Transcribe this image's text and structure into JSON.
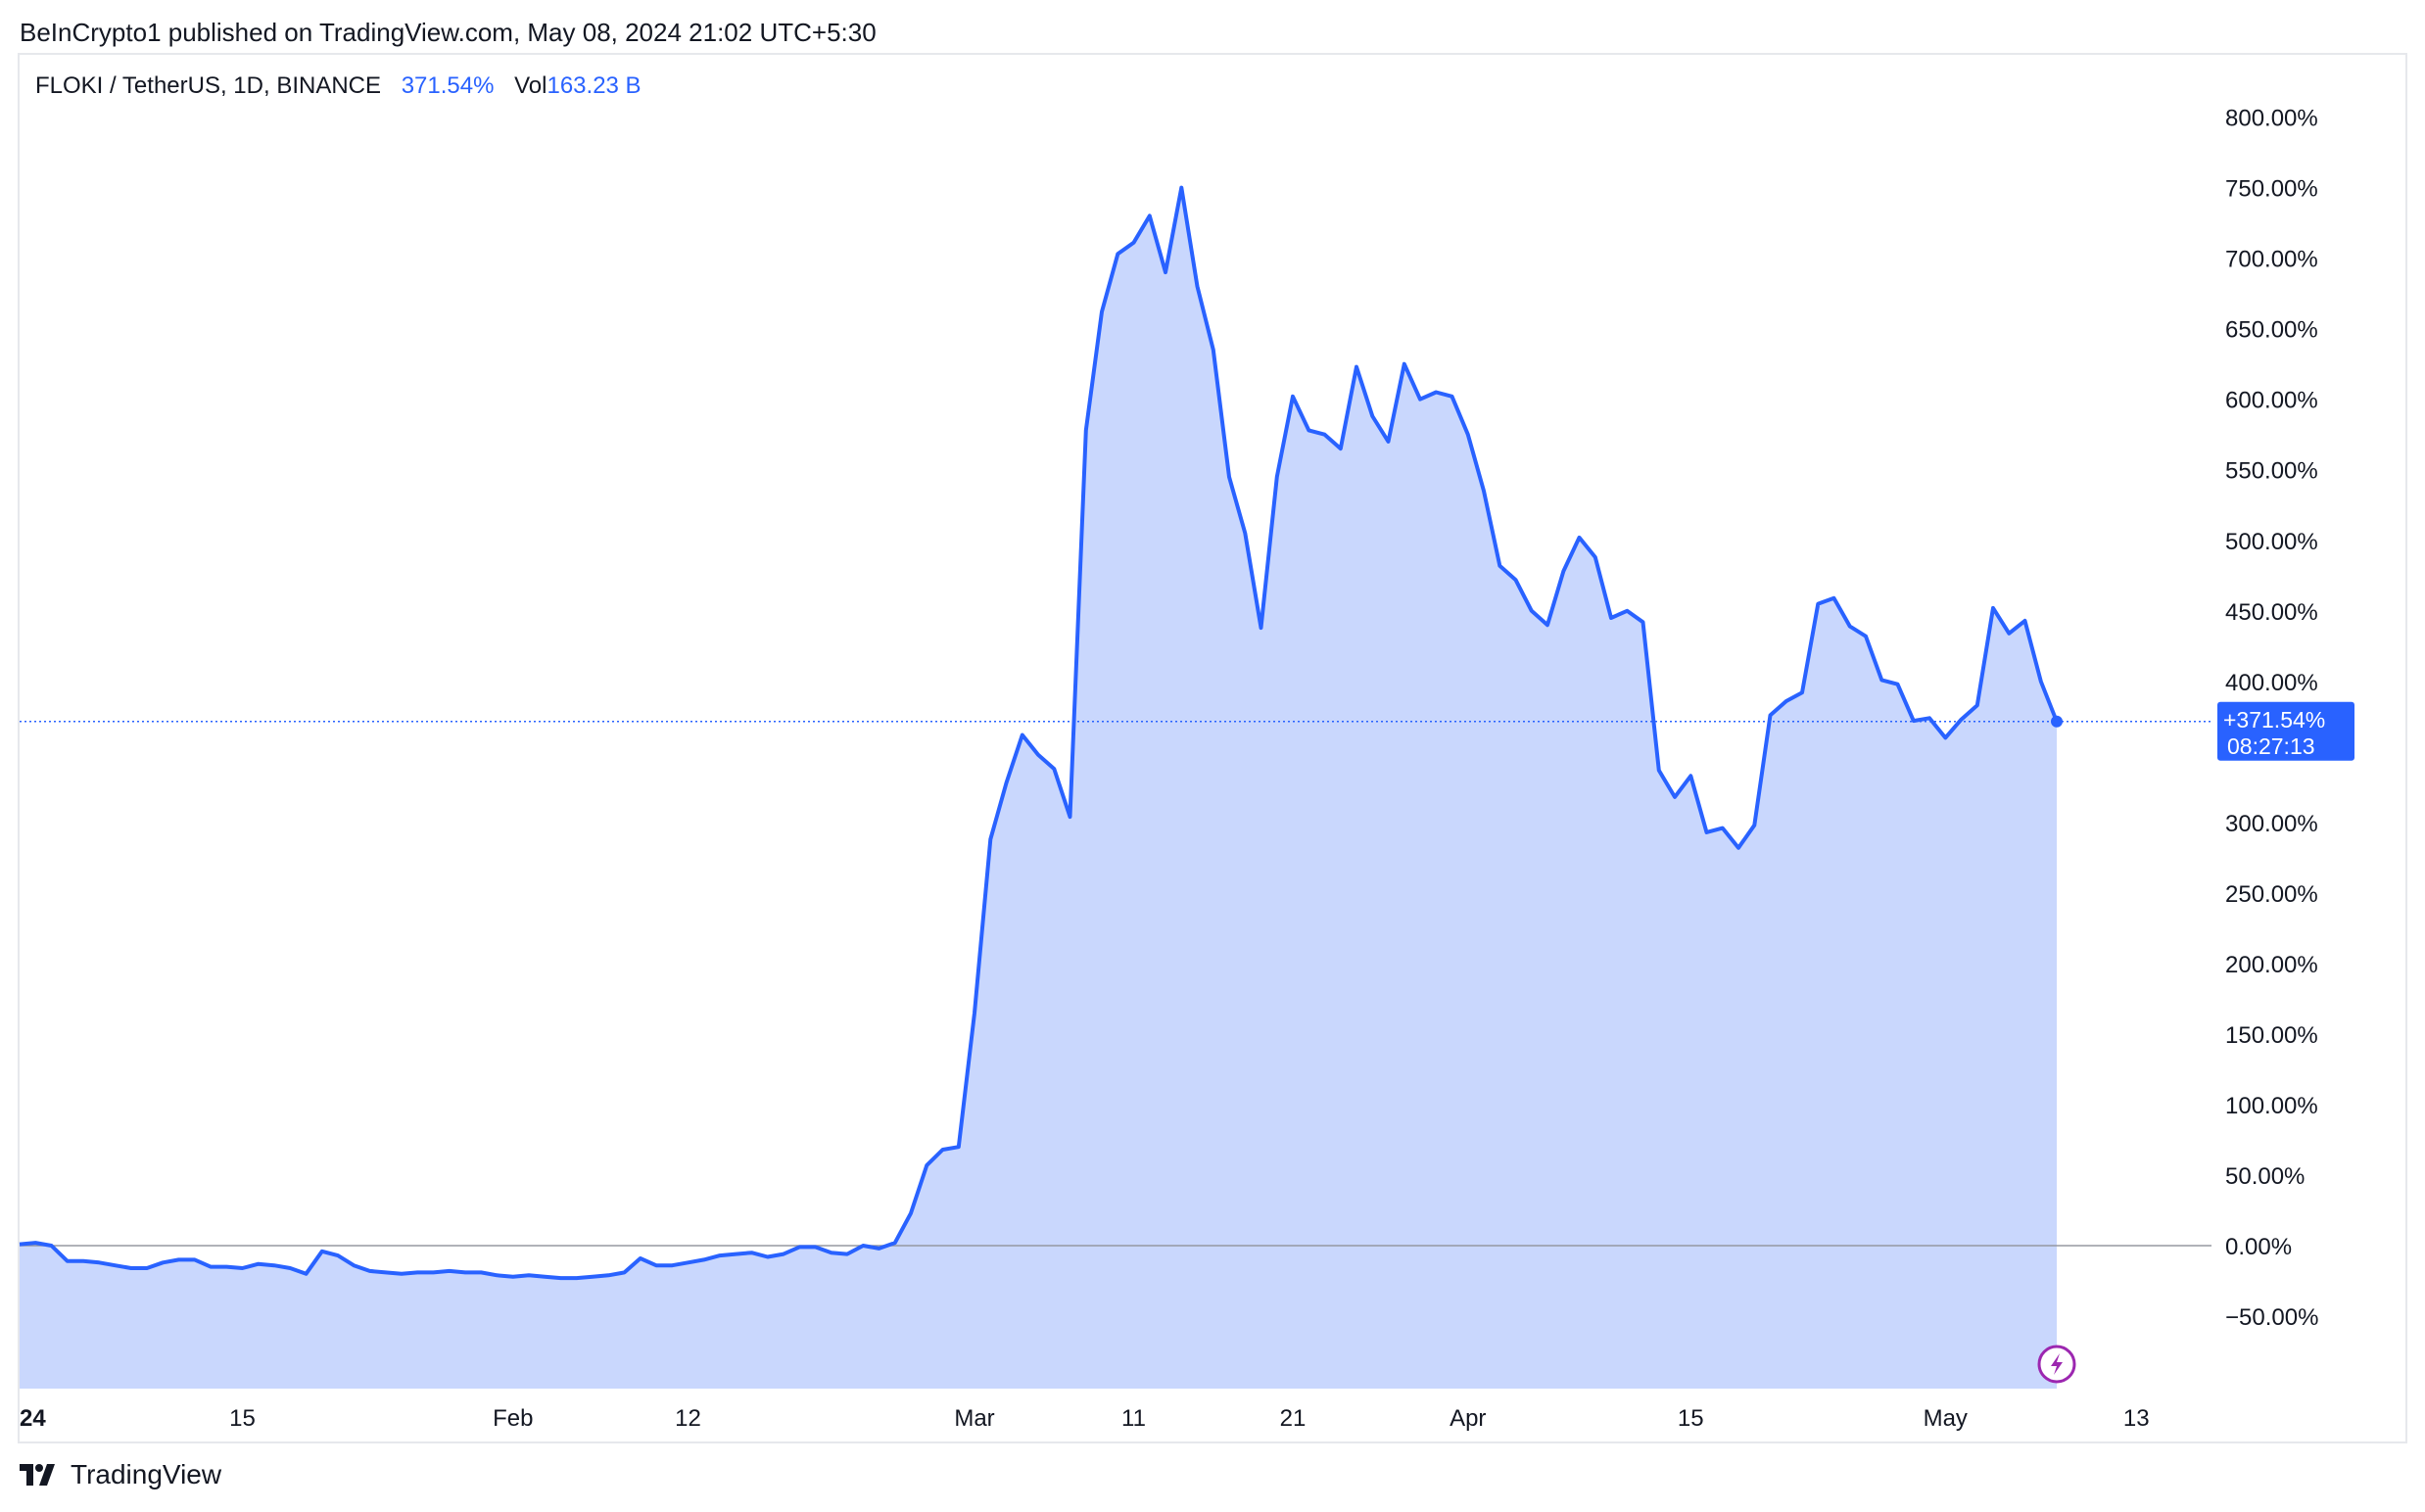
{
  "header": {
    "published_text": "BeInCrypto1 published on TradingView.com, May 08, 2024 21:02 UTC+5:30"
  },
  "legend": {
    "symbol": "FLOKI / TetherUS, 1D, BINANCE",
    "change": "371.54%",
    "volume_label": "Vol",
    "volume_value": "163.23 B"
  },
  "price_label": {
    "value": "+371.54%",
    "countdown": "08:27:13"
  },
  "footer": {
    "brand": "TradingView"
  },
  "colors": {
    "line": "#2962ff",
    "fill": "#c9d7fd",
    "zero_line": "#9598a1",
    "label_bg": "#2962ff"
  },
  "icons": {
    "lightning": "lightning-icon",
    "logo": "tradingview-logo-icon"
  },
  "chart_data": {
    "type": "area",
    "x_tick_labels": [
      {
        "day": 0,
        "label": "24"
      },
      {
        "day": 14,
        "label": "15"
      },
      {
        "day": 31,
        "label": "Feb"
      },
      {
        "day": 42,
        "label": "12"
      },
      {
        "day": 60,
        "label": "Mar"
      },
      {
        "day": 70,
        "label": "11"
      },
      {
        "day": 80,
        "label": "21"
      },
      {
        "day": 91,
        "label": "Apr"
      },
      {
        "day": 105,
        "label": "15"
      },
      {
        "day": 121,
        "label": "May"
      },
      {
        "day": 133,
        "label": "13"
      }
    ],
    "y_tick_labels": [
      "800.00%",
      "750.00%",
      "700.00%",
      "650.00%",
      "600.00%",
      "550.00%",
      "500.00%",
      "450.00%",
      "400.00%",
      "300.00%",
      "250.00%",
      "200.00%",
      "150.00%",
      "100.00%",
      "50.00%",
      "0.00%",
      "−50.00%"
    ],
    "y_tick_values": [
      800,
      750,
      700,
      650,
      600,
      550,
      500,
      450,
      400,
      300,
      250,
      200,
      150,
      100,
      50,
      0,
      -50
    ],
    "ylim": [
      -100,
      800
    ],
    "xlim": [
      0,
      138
    ],
    "last_value": 371.54,
    "series": [
      {
        "values": [
          [
            0,
            1
          ],
          [
            1,
            2
          ],
          [
            2,
            0
          ],
          [
            3,
            -11
          ],
          [
            4,
            -11
          ],
          [
            5,
            -12
          ],
          [
            6,
            -14
          ],
          [
            7,
            -16
          ],
          [
            8,
            -16
          ],
          [
            9,
            -12
          ],
          [
            10,
            -10
          ],
          [
            11,
            -10
          ],
          [
            12,
            -15
          ],
          [
            13,
            -15
          ],
          [
            14,
            -16
          ],
          [
            15,
            -13
          ],
          [
            16,
            -14
          ],
          [
            17,
            -16
          ],
          [
            18,
            -20
          ],
          [
            19,
            -4
          ],
          [
            20,
            -7
          ],
          [
            21,
            -14
          ],
          [
            22,
            -18
          ],
          [
            23,
            -19
          ],
          [
            24,
            -20
          ],
          [
            25,
            -19
          ],
          [
            26,
            -19
          ],
          [
            27,
            -18
          ],
          [
            28,
            -19
          ],
          [
            29,
            -19
          ],
          [
            30,
            -21
          ],
          [
            31,
            -22
          ],
          [
            32,
            -21
          ],
          [
            33,
            -22
          ],
          [
            34,
            -23
          ],
          [
            35,
            -23
          ],
          [
            36,
            -22
          ],
          [
            37,
            -21
          ],
          [
            38,
            -19
          ],
          [
            39,
            -9
          ],
          [
            40,
            -14
          ],
          [
            41,
            -14
          ],
          [
            42,
            -12
          ],
          [
            43,
            -10
          ],
          [
            44,
            -7
          ],
          [
            45,
            -6
          ],
          [
            46,
            -5
          ],
          [
            47,
            -8
          ],
          [
            48,
            -6
          ],
          [
            49,
            -1
          ],
          [
            50,
            -1
          ],
          [
            51,
            -5
          ],
          [
            52,
            -6
          ],
          [
            53,
            0
          ],
          [
            54,
            -2
          ],
          [
            55,
            2
          ],
          [
            56,
            23
          ],
          [
            57,
            57
          ],
          [
            58,
            68
          ],
          [
            59,
            70
          ],
          [
            60,
            165
          ],
          [
            61,
            288
          ],
          [
            62,
            328
          ],
          [
            63,
            362
          ],
          [
            64,
            348
          ],
          [
            65,
            338
          ],
          [
            66,
            304
          ],
          [
            67,
            578
          ],
          [
            68,
            662
          ],
          [
            69,
            703
          ],
          [
            70,
            711
          ],
          [
            71,
            730
          ],
          [
            72,
            690
          ],
          [
            73,
            750
          ],
          [
            74,
            680
          ],
          [
            75,
            635
          ],
          [
            76,
            545
          ],
          [
            77,
            505
          ],
          [
            78,
            438
          ],
          [
            79,
            545
          ],
          [
            80,
            602
          ],
          [
            81,
            578
          ],
          [
            82,
            575
          ],
          [
            83,
            565
          ],
          [
            84,
            623
          ],
          [
            85,
            588
          ],
          [
            86,
            570
          ],
          [
            87,
            625
          ],
          [
            88,
            600
          ],
          [
            89,
            605
          ],
          [
            90,
            602
          ],
          [
            91,
            575
          ],
          [
            92,
            535
          ],
          [
            93,
            482
          ],
          [
            94,
            472
          ],
          [
            95,
            450
          ],
          [
            96,
            440
          ],
          [
            97,
            478
          ],
          [
            98,
            502
          ],
          [
            99,
            488
          ],
          [
            100,
            445
          ],
          [
            101,
            450
          ],
          [
            102,
            442
          ],
          [
            103,
            337
          ],
          [
            104,
            318
          ],
          [
            105,
            333
          ],
          [
            106,
            293
          ],
          [
            107,
            296
          ],
          [
            108,
            282
          ],
          [
            109,
            298
          ],
          [
            110,
            376
          ],
          [
            111,
            386
          ],
          [
            112,
            392
          ],
          [
            113,
            455
          ],
          [
            114,
            459
          ],
          [
            115,
            439
          ],
          [
            116,
            432
          ],
          [
            117,
            401
          ],
          [
            118,
            398
          ],
          [
            119,
            372
          ],
          [
            120,
            374
          ],
          [
            121,
            360
          ],
          [
            122,
            373
          ],
          [
            123,
            383
          ],
          [
            124,
            452
          ],
          [
            125,
            434
          ],
          [
            126,
            443
          ],
          [
            127,
            400
          ],
          [
            128,
            371.54
          ]
        ]
      }
    ]
  }
}
